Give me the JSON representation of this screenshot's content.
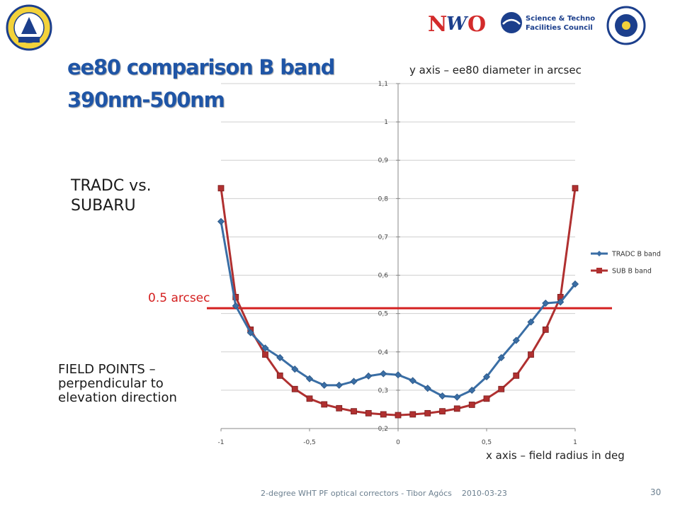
{
  "title": {
    "line1": "ee80 comparison B band",
    "line2": "390nm-500nm"
  },
  "notes": {
    "y_axis": "y axis – ee80 diameter in arcsec",
    "x_axis": "x axis – field radius in deg",
    "comparison": "TRADC vs. SUBARU",
    "reference_line": "0.5 arcsec",
    "field_points": "FIELD POINTS – perpendicular to elevation direction"
  },
  "logos": {
    "ing": "ISAAC NEWTON GROUP LA PALMA",
    "nwo": "NWO",
    "stfc": "Science & Technology Facilities Council",
    "iac": "INSTITUTO DE ASTROFISICA DE CANARIAS"
  },
  "footer": {
    "text": "2-degree WHT PF optical correctors - Tibor Agócs",
    "date": "2010-03-23",
    "page": "30"
  },
  "colors": {
    "tradc": "#3a6ea5",
    "sub": "#b03030",
    "reference": "#d42020",
    "title": "#1f55a6"
  },
  "chart_data": {
    "type": "line",
    "x_tick_labels": [
      "-1",
      "-0,5",
      "0",
      "0,5",
      "1"
    ],
    "y_tick_labels": [
      "0,2",
      "0,3",
      "0,4",
      "0,5",
      "0,6",
      "0,7",
      "0,8",
      "0,9",
      "1",
      "1,1"
    ],
    "xlim": [
      -1,
      1
    ],
    "ylim": [
      0.2,
      1.1
    ],
    "legend_position": "right",
    "reference_y": 0.514,
    "series": [
      {
        "name": "TRADC B band",
        "marker": "diamond",
        "x": [
          -1,
          -0.917,
          -0.833,
          -0.75,
          -0.667,
          -0.583,
          -0.5,
          -0.417,
          -0.333,
          -0.25,
          -0.167,
          -0.083,
          0,
          0.083,
          0.167,
          0.25,
          0.333,
          0.417,
          0.5,
          0.583,
          0.667,
          0.75,
          0.833,
          0.917,
          1
        ],
        "y": [
          0.74,
          0.52,
          0.45,
          0.41,
          0.385,
          0.355,
          0.33,
          0.313,
          0.313,
          0.323,
          0.337,
          0.343,
          0.34,
          0.325,
          0.305,
          0.285,
          0.282,
          0.3,
          0.335,
          0.385,
          0.43,
          0.478,
          0.527,
          0.53,
          0.577
        ]
      },
      {
        "name": "SUB B band",
        "marker": "square",
        "x": [
          -1,
          -0.917,
          -0.833,
          -0.75,
          -0.667,
          -0.583,
          -0.5,
          -0.417,
          -0.333,
          -0.25,
          -0.167,
          -0.083,
          0,
          0.083,
          0.167,
          0.25,
          0.333,
          0.417,
          0.5,
          0.583,
          0.667,
          0.75,
          0.833,
          0.917,
          1
        ],
        "y": [
          0.827,
          0.543,
          0.458,
          0.393,
          0.338,
          0.303,
          0.278,
          0.263,
          0.253,
          0.245,
          0.24,
          0.237,
          0.235,
          0.237,
          0.24,
          0.245,
          0.252,
          0.262,
          0.278,
          0.303,
          0.338,
          0.393,
          0.458,
          0.543,
          0.827
        ]
      }
    ]
  }
}
